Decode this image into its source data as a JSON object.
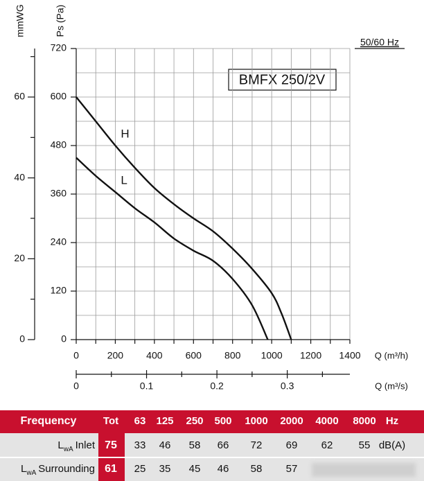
{
  "chart_data": {
    "type": "line",
    "title": "BMFX 250/2V",
    "subtitle": "50/60 Hz",
    "y_label": "Ps (Pa)",
    "y2_label": "mmWG",
    "x_label": "Q (m³/h)",
    "x2_label": "Q (m³/s)",
    "xlim": [
      0,
      1400
    ],
    "xticks": [
      0,
      200,
      400,
      600,
      800,
      1000,
      1200,
      1400
    ],
    "xminor": [
      100,
      300,
      500,
      700,
      900,
      1100,
      1300
    ],
    "ylim": [
      0,
      720
    ],
    "yticks": [
      0,
      120,
      240,
      360,
      480,
      600,
      720
    ],
    "yminor": [
      60,
      180,
      300,
      420,
      540,
      660
    ],
    "y2lim": [
      0,
      72
    ],
    "y2ticks": [
      0,
      20,
      40,
      60
    ],
    "y2minor": [
      10,
      30,
      50,
      70
    ],
    "x2lim": [
      0,
      0.389
    ],
    "x2ticks": [
      0,
      0.1,
      0.2,
      0.3
    ],
    "x2minor": [
      0.05,
      0.15,
      0.25,
      0.35
    ],
    "grid": true,
    "series": [
      {
        "name": "H",
        "color": "#111111",
        "x": [
          0,
          100,
          200,
          300,
          400,
          500,
          600,
          700,
          800,
          900,
          1000,
          1050,
          1100
        ],
        "values": [
          600,
          540,
          480,
          425,
          375,
          335,
          300,
          268,
          225,
          175,
          115,
          65,
          0
        ]
      },
      {
        "name": "L",
        "color": "#111111",
        "x": [
          0,
          100,
          200,
          300,
          400,
          500,
          600,
          700,
          800,
          900,
          980
        ],
        "values": [
          450,
          405,
          365,
          325,
          290,
          250,
          220,
          195,
          150,
          85,
          0
        ]
      }
    ]
  },
  "table": {
    "header": [
      "Frequency",
      "Tot",
      "63",
      "125",
      "250",
      "500",
      "1000",
      "2000",
      "4000",
      "8000",
      "Hz"
    ],
    "rows": [
      {
        "symbol": "L",
        "subscript": "wA",
        "label": "Inlet",
        "tot": "75",
        "values": [
          "33",
          "46",
          "58",
          "66",
          "72",
          "69",
          "62",
          "55"
        ],
        "unit": "dB(A)"
      },
      {
        "symbol": "L",
        "subscript": "wA",
        "label": "Surrounding",
        "tot": "61",
        "values": [
          "25",
          "35",
          "45",
          "46",
          "58",
          "57"
        ]
      }
    ]
  }
}
